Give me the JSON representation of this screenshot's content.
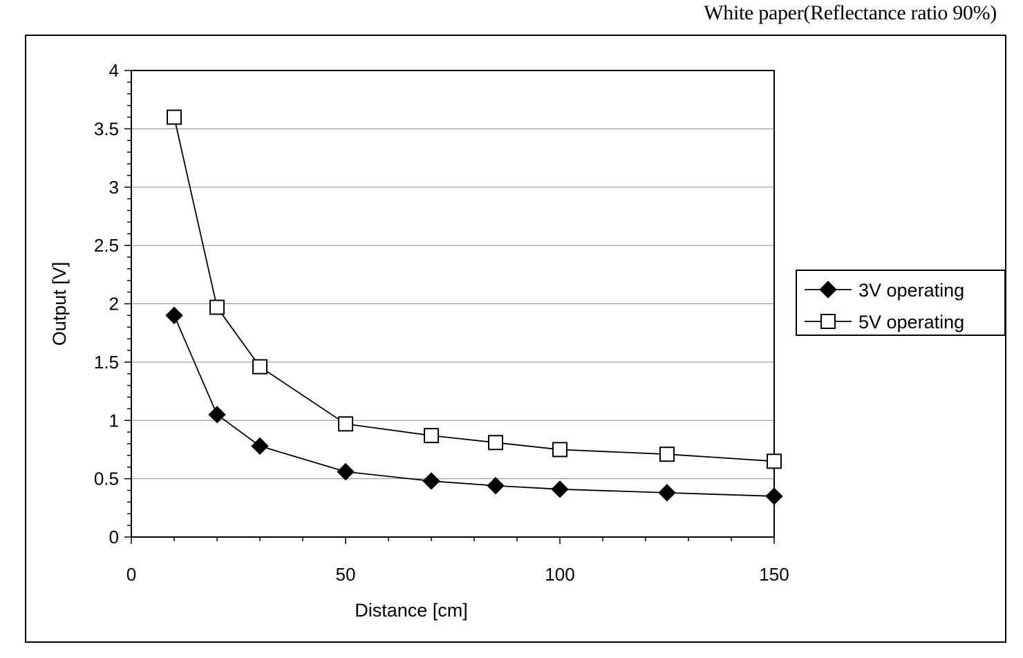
{
  "note": "White paper(Reflectance ratio 90%)",
  "chart_data": {
    "type": "line",
    "xlabel": "Distance [cm]",
    "ylabel": "Output [V]",
    "xlim": [
      0,
      150
    ],
    "ylim": [
      0,
      4
    ],
    "x_ticks": [
      "0",
      "50",
      "100",
      "150"
    ],
    "y_ticks": [
      "0",
      "0.5",
      "1",
      "1.5",
      "2",
      "2.5",
      "3",
      "3.5",
      "4"
    ],
    "grid": "horizontal",
    "legend_position": "right",
    "series": [
      {
        "name": "3V operating",
        "marker": "filled-diamond",
        "color": "#000000",
        "x": [
          10,
          20,
          30,
          50,
          70,
          85,
          100,
          125,
          150
        ],
        "y": [
          1.9,
          1.05,
          0.78,
          0.56,
          0.48,
          0.44,
          0.41,
          0.38,
          0.35
        ]
      },
      {
        "name": "5V operating",
        "marker": "open-square",
        "color": "#000000",
        "x": [
          10,
          20,
          30,
          50,
          70,
          85,
          100,
          125,
          150
        ],
        "y": [
          3.6,
          1.97,
          1.46,
          0.97,
          0.87,
          0.81,
          0.75,
          0.71,
          0.65
        ]
      }
    ]
  }
}
